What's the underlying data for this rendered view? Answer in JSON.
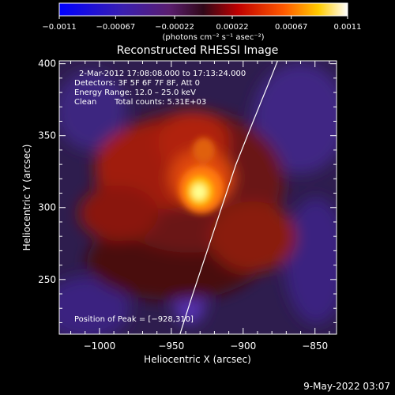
{
  "chart_data": {
    "type": "heatmap",
    "title": "Reconstructed RHESSI Image",
    "xlabel": "Heliocentric X (arcsec)",
    "ylabel": "Heliocentric Y (arcsec)",
    "xlim": [
      -1028,
      -835
    ],
    "ylim": [
      212,
      402
    ],
    "x_ticks": [
      -1000,
      -950,
      -900,
      -850
    ],
    "y_ticks": [
      250,
      300,
      350,
      400
    ],
    "x_tick_labels": [
      "−1000",
      "−950",
      "−900",
      "−850"
    ],
    "y_tick_labels": [
      "250",
      "300",
      "350",
      "400"
    ],
    "colorbar": {
      "min": -0.0011,
      "max": 0.0011,
      "tick_values": [
        -0.0011,
        -0.00067,
        -0.00022,
        0.00022,
        0.00067,
        0.0011
      ],
      "tick_labels": [
        "−0.0011",
        "−0.00067",
        "−0.00022",
        "0.00022",
        "0.00067",
        "0.0011"
      ],
      "unit_label": "(photons cm⁻² s⁻¹ asec⁻²)"
    },
    "annotations": {
      "time": "2-Mar-2012 17:08:08.000 to 17:13:24.000",
      "detectors": "Detectors: 3F 5F 6F 7F 8F, Att 0",
      "energy": "Energy Range: 12.0 – 25.0 keV",
      "clean": "Clean",
      "counts": "Total counts: 5.31E+03",
      "peak": "Position of Peak = [−928,310]"
    },
    "peak": [
      -928,
      310
    ],
    "limb_curve": [
      [
        -944,
        212
      ],
      [
        -935,
        240
      ],
      [
        -925,
        270
      ],
      [
        -915,
        300
      ],
      [
        -905,
        330
      ],
      [
        -893,
        360
      ],
      [
        -880,
        392
      ],
      [
        -876,
        402
      ]
    ],
    "footer": "9-May-2022 03:07"
  }
}
